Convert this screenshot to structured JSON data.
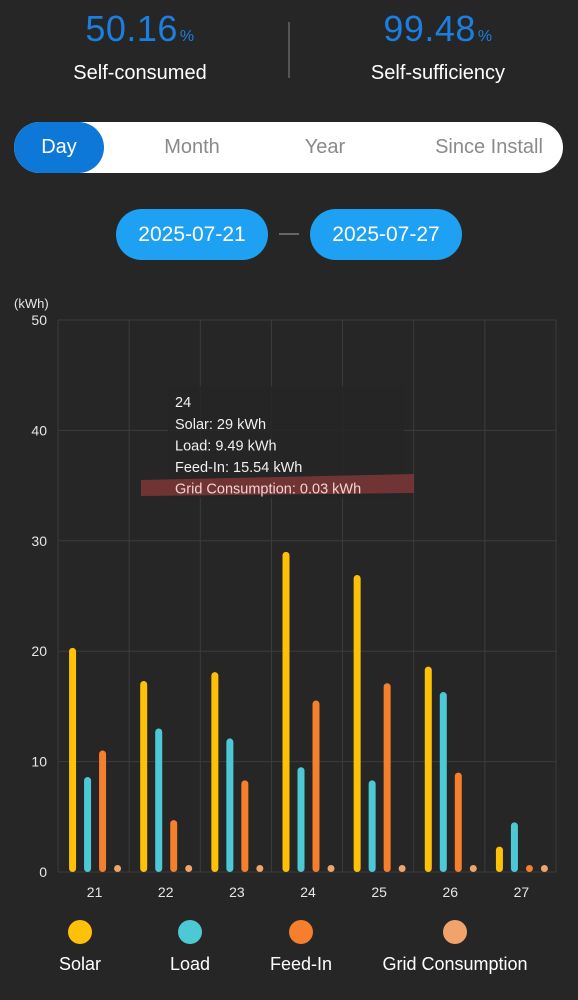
{
  "stats": {
    "self_consumed": {
      "value": "50.16",
      "unit": "%",
      "label": "Self-consumed"
    },
    "self_sufficiency": {
      "value": "99.48",
      "unit": "%",
      "label": "Self-sufficiency"
    }
  },
  "tabs": [
    {
      "label": "Day",
      "active": true
    },
    {
      "label": "Month",
      "active": false
    },
    {
      "label": "Year",
      "active": false
    },
    {
      "label": "Since Install",
      "active": false
    }
  ],
  "date_range": {
    "start": "2025-07-21",
    "end": "2025-07-27"
  },
  "colors": {
    "solar": "#ffc107",
    "load": "#4dc9d6",
    "feed_in": "#f57f2c",
    "grid": "#f0a36a",
    "tooltip_highlight": "#8a3a3a"
  },
  "chart_data": {
    "type": "bar",
    "ylabel": "(kWh)",
    "ylim": [
      0,
      50
    ],
    "yticks": [
      0,
      10,
      20,
      30,
      40,
      50
    ],
    "categories": [
      "21",
      "22",
      "23",
      "24",
      "25",
      "26",
      "27"
    ],
    "series": [
      {
        "name": "Solar",
        "values": [
          20.3,
          17.3,
          18.1,
          29,
          26.9,
          18.6,
          2.3
        ]
      },
      {
        "name": "Load",
        "values": [
          8.6,
          13.0,
          12.1,
          9.49,
          8.3,
          16.3,
          4.5
        ]
      },
      {
        "name": "Feed-In",
        "values": [
          11.0,
          4.7,
          8.3,
          15.54,
          17.1,
          9.0,
          0.5
        ]
      },
      {
        "name": "Grid Consumption",
        "values": [
          0.5,
          0.5,
          0.5,
          0.03,
          0.5,
          0.5,
          0.5
        ]
      }
    ],
    "grid": true,
    "legend": "bottom",
    "tooltip": {
      "title": "24",
      "lines": [
        "Solar: 29 kWh",
        "Load: 9.49 kWh",
        "Feed-In: 15.54 kWh",
        "Grid Consumption: 0.03 kWh"
      ],
      "highlighted_line": 3
    }
  }
}
